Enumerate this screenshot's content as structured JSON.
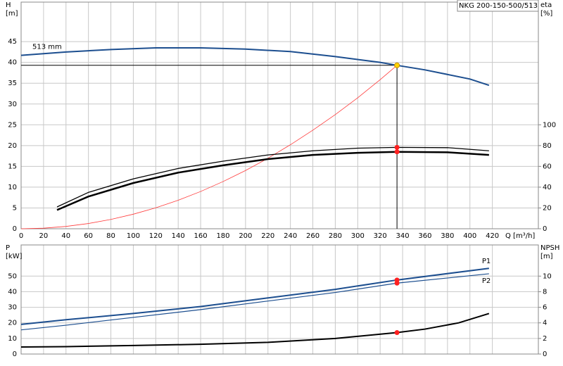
{
  "chart_data": [
    {
      "type": "line",
      "model": "NKG 200-150-500/513",
      "ylabel": "H",
      "yunit": "[m]",
      "y2label": "eta",
      "y2unit": "[%]",
      "xlabel": "Q [m³/h]",
      "xlim": [
        0,
        461
      ],
      "xticks": [
        0,
        20,
        40,
        60,
        80,
        100,
        120,
        140,
        160,
        180,
        200,
        220,
        240,
        260,
        280,
        300,
        320,
        340,
        360,
        380,
        400,
        420
      ],
      "ylim": [
        0,
        54.5
      ],
      "yticks": [
        0,
        5,
        10,
        15,
        20,
        25,
        30,
        35,
        40,
        45
      ],
      "y2lim": [
        0,
        218
      ],
      "y2ticks": [
        0,
        20,
        40,
        60,
        80,
        100
      ],
      "grid": true,
      "series": [
        {
          "name": "513 mm",
          "color": "#1c4e8f",
          "width": 2,
          "label_at": "start",
          "x": [
            0,
            40,
            80,
            120,
            160,
            200,
            240,
            280,
            320,
            335,
            360,
            400,
            417
          ],
          "values": [
            41.7,
            42.5,
            43.1,
            43.5,
            43.5,
            43.2,
            42.6,
            41.4,
            40.0,
            39.3,
            38.2,
            36.0,
            34.5
          ]
        },
        {
          "color": "#ff3b3b",
          "width": 0.8,
          "x": [
            0,
            20,
            40,
            60,
            80,
            100,
            120,
            140,
            160,
            180,
            200,
            220,
            240,
            260,
            280,
            300,
            320,
            335
          ],
          "values": [
            0,
            0.14,
            0.56,
            1.26,
            2.24,
            3.5,
            5.04,
            6.86,
            8.96,
            11.35,
            14.0,
            16.95,
            20.2,
            23.7,
            27.45,
            31.5,
            35.85,
            39.3
          ]
        },
        {
          "color": "#000000",
          "width": 1.3,
          "axis": "y2",
          "x": [
            32,
            60,
            100,
            140,
            180,
            220,
            260,
            300,
            335,
            380,
            417
          ],
          "values": [
            21,
            35,
            48,
            58,
            65,
            71,
            75,
            77.5,
            78.3,
            78,
            75
          ]
        },
        {
          "color": "#000000",
          "width": 2.5,
          "axis": "y2",
          "x": [
            32,
            60,
            100,
            140,
            180,
            220,
            260,
            300,
            335,
            380,
            417
          ],
          "values": [
            18,
            31,
            44,
            54,
            61,
            67,
            71,
            73,
            74,
            73.5,
            71
          ]
        }
      ],
      "operating_point": {
        "x": 335,
        "y": 39.3,
        "color": "#ffd400"
      },
      "points": [
        {
          "x": 335,
          "y": 78.3,
          "axis": "y2",
          "color": "#ff2020"
        },
        {
          "x": 335,
          "y": 74,
          "axis": "y2",
          "color": "#ff2020"
        }
      ]
    },
    {
      "type": "line",
      "ylabel": "P",
      "yunit": "[kW]",
      "y2label": "NPSH",
      "y2unit": "[m]",
      "xlim": [
        0,
        461
      ],
      "ylim": [
        0,
        70
      ],
      "yticks": [
        0,
        10,
        20,
        30,
        40,
        50
      ],
      "y2lim": [
        0,
        14
      ],
      "y2ticks": [
        0,
        2,
        4,
        6,
        8,
        10
      ],
      "grid": true,
      "series": [
        {
          "name": "P1",
          "color": "#1c4e8f",
          "width": 2,
          "label_at": "end",
          "x": [
            0,
            40,
            100,
            160,
            220,
            280,
            335,
            417
          ],
          "values": [
            19,
            22,
            26,
            30.5,
            36,
            41.5,
            47.5,
            55
          ]
        },
        {
          "name": "P2",
          "color": "#1c4e8f",
          "width": 1.2,
          "label_at": "end",
          "x": [
            0,
            40,
            100,
            160,
            220,
            280,
            335,
            417
          ],
          "values": [
            15.5,
            18.5,
            23.5,
            28.5,
            34,
            39.5,
            45.5,
            51.5
          ]
        },
        {
          "color": "#000000",
          "width": 2,
          "axis": "y2",
          "x": [
            0,
            40,
            100,
            160,
            220,
            280,
            335,
            360,
            390,
            417
          ],
          "values": [
            0.9,
            0.95,
            1.1,
            1.25,
            1.5,
            2.0,
            2.75,
            3.2,
            4.0,
            5.2
          ]
        }
      ],
      "points": [
        {
          "x": 335,
          "y": 47.5,
          "color": "#ff2020"
        },
        {
          "x": 335,
          "y": 45.5,
          "color": "#ff2020"
        },
        {
          "x": 335,
          "y": 2.75,
          "axis": "y2",
          "color": "#ff2020"
        }
      ]
    }
  ]
}
